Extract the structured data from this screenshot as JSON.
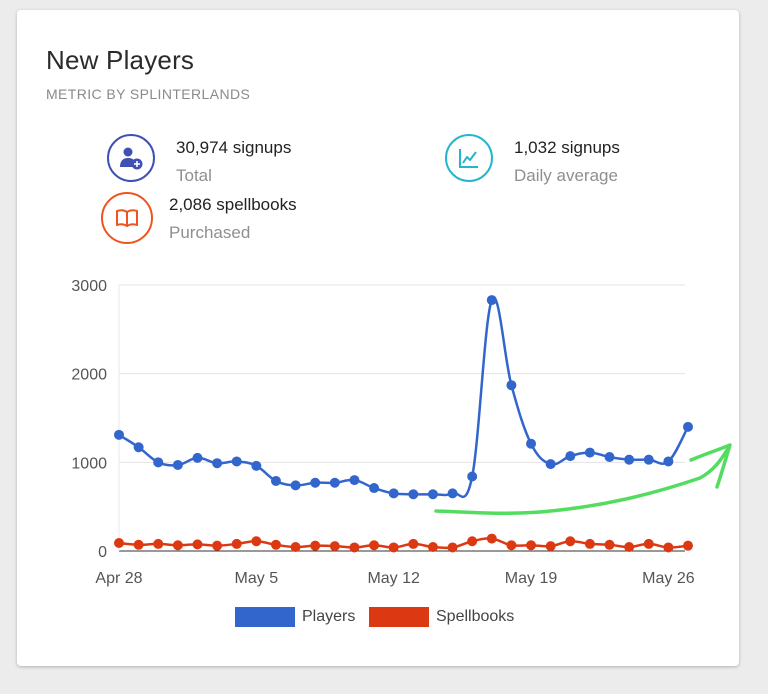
{
  "card": {
    "title": "New Players",
    "subtitle": "METRIC BY SPLINTERLANDS"
  },
  "stats": {
    "signups": {
      "value": "30,974 signups",
      "label": "Total",
      "color": "#3f51b5",
      "icon": "add-user-icon"
    },
    "daily": {
      "value": "1,032 signups",
      "label": "Daily average",
      "color": "#26b5cf",
      "icon": "line-chart-icon"
    },
    "spellbooks": {
      "value": "2,086 spellbooks",
      "label": "Purchased",
      "color": "#f0541e",
      "icon": "book-icon"
    }
  },
  "chart_data": {
    "type": "line",
    "x_tick_labels": [
      "Apr 28",
      "May 5",
      "May 12",
      "May 19",
      "May 26"
    ],
    "y_tick_labels": [
      "0",
      "1000",
      "2000",
      "3000"
    ],
    "ylim": [
      0,
      3000
    ],
    "grid": true,
    "legend_position": "bottom",
    "series": [
      {
        "name": "Players",
        "color": "#3366cc",
        "values": [
          1310,
          1170,
          1000,
          970,
          1050,
          990,
          1010,
          960,
          790,
          740,
          770,
          770,
          800,
          710,
          650,
          640,
          640,
          650,
          840,
          2830,
          1870,
          1210,
          980,
          1070,
          1110,
          1060,
          1030,
          1030,
          1010,
          1400
        ]
      },
      {
        "name": "Spellbooks",
        "color": "#dc3912",
        "values": [
          90,
          70,
          80,
          65,
          75,
          60,
          80,
          110,
          70,
          45,
          60,
          55,
          40,
          65,
          40,
          80,
          45,
          40,
          110,
          140,
          65,
          65,
          55,
          110,
          80,
          70,
          45,
          80,
          40,
          60
        ]
      }
    ]
  },
  "annotation": {
    "color": "#53dd60"
  }
}
